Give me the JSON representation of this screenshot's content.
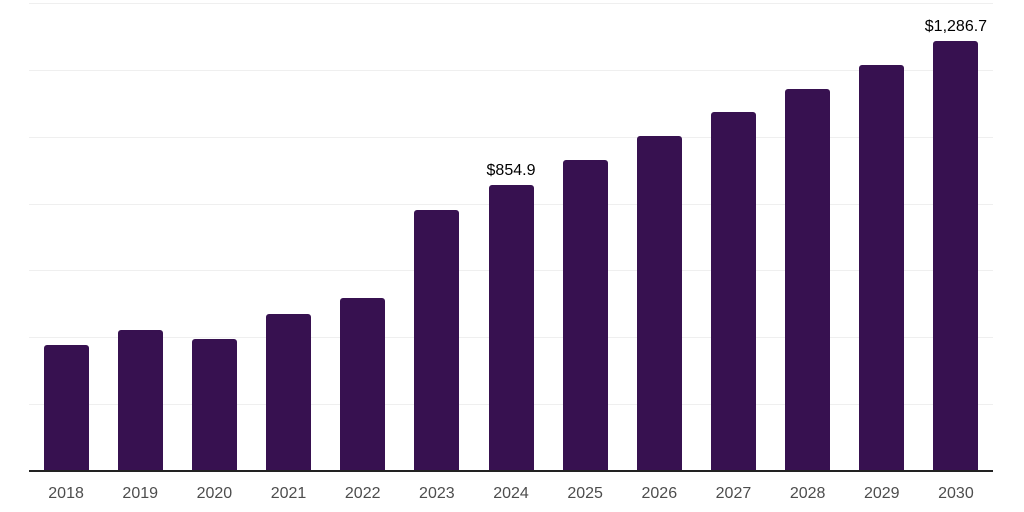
{
  "chart_data": {
    "type": "bar",
    "title": "",
    "xlabel": "",
    "ylabel": "",
    "categories": [
      "2018",
      "2019",
      "2020",
      "2021",
      "2022",
      "2023",
      "2024",
      "2025",
      "2026",
      "2027",
      "2028",
      "2029",
      "2030"
    ],
    "values": [
      376,
      423,
      396,
      471,
      518,
      781,
      854.9,
      929,
      1002,
      1073,
      1143,
      1216,
      1286.7
    ],
    "data_labels": [
      {
        "category": "2024",
        "text": "$854.9"
      },
      {
        "category": "2030",
        "text": "$1,286.7"
      }
    ],
    "ylim": [
      0,
      1400
    ],
    "gridline_step": 200,
    "grid": "horizontal",
    "y_tick_labels_visible": false,
    "legend": "none",
    "colors": {
      "bar": "#371150",
      "grid": "#efefef",
      "axis_line": "#222222",
      "tick_label": "#4d4d4d",
      "data_label": "#000000",
      "background": "#ffffff"
    }
  }
}
